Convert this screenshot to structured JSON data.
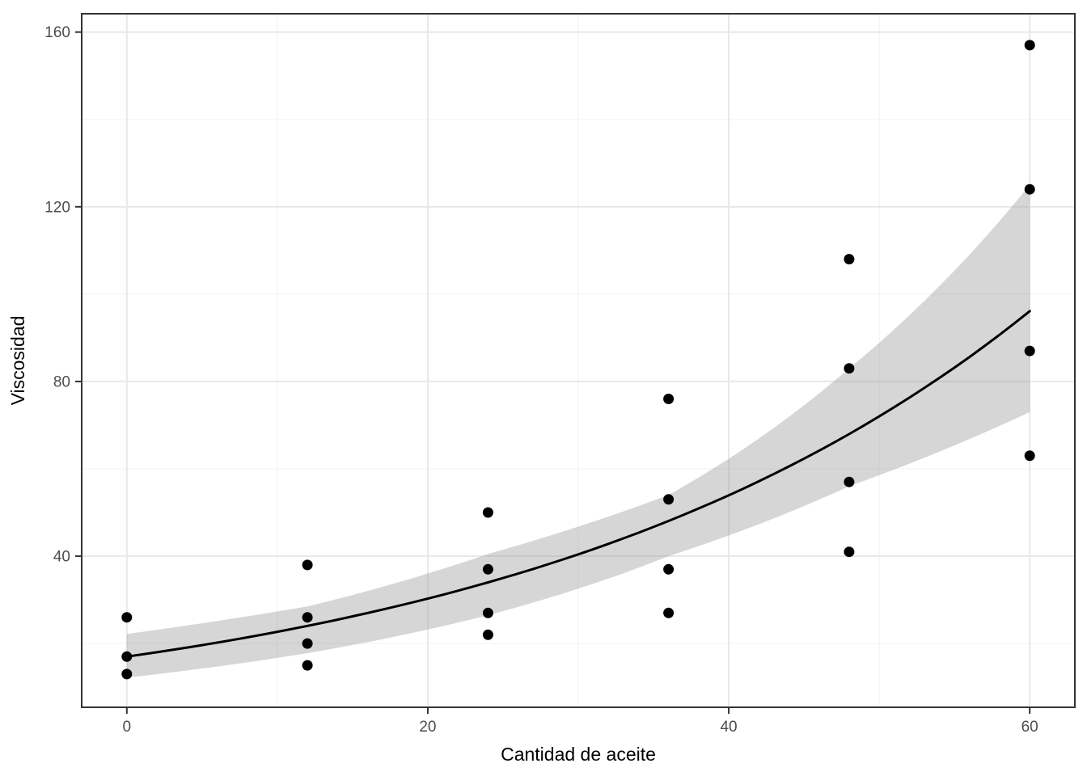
{
  "chart_data": {
    "type": "scatter",
    "title": "",
    "xlabel": "Cantidad de aceite",
    "ylabel": "Viscosidad",
    "x_ticks": [
      0,
      20,
      40,
      60
    ],
    "x_minor_gridlines": [
      10,
      30,
      50
    ],
    "y_ticks": [
      40,
      80,
      120,
      160
    ],
    "y_minor_gridlines": [
      20,
      60,
      100,
      140
    ],
    "xlim": [
      -3,
      63
    ],
    "ylim": [
      5.4,
      164.2
    ],
    "grid": true,
    "legend": "none",
    "points": [
      {
        "x": 0,
        "y": 26
      },
      {
        "x": 0,
        "y": 17
      },
      {
        "x": 0,
        "y": 13
      },
      {
        "x": 12,
        "y": 38
      },
      {
        "x": 12,
        "y": 26
      },
      {
        "x": 12,
        "y": 20
      },
      {
        "x": 12,
        "y": 15
      },
      {
        "x": 24,
        "y": 50
      },
      {
        "x": 24,
        "y": 37
      },
      {
        "x": 24,
        "y": 27
      },
      {
        "x": 24,
        "y": 22
      },
      {
        "x": 36,
        "y": 76
      },
      {
        "x": 36,
        "y": 53
      },
      {
        "x": 36,
        "y": 37
      },
      {
        "x": 36,
        "y": 27
      },
      {
        "x": 48,
        "y": 108
      },
      {
        "x": 48,
        "y": 83
      },
      {
        "x": 48,
        "y": 57
      },
      {
        "x": 48,
        "y": 41
      },
      {
        "x": 60,
        "y": 157
      },
      {
        "x": 60,
        "y": 124
      },
      {
        "x": 60,
        "y": 87
      },
      {
        "x": 60,
        "y": 63
      }
    ],
    "smooth_line": {
      "model": "exponential",
      "equation": "y = 17 * exp(0.02887 * x)",
      "a": 17,
      "b": 0.02887,
      "x_from": 0,
      "x_to": 60
    },
    "confidence_band": {
      "x": [
        0,
        12,
        24,
        36,
        48,
        60
      ],
      "lower": [
        12.2,
        17.8,
        26.5,
        40,
        56,
        73
      ],
      "upper": [
        22.2,
        28.5,
        40.5,
        54,
        83,
        125
      ]
    },
    "colors": {
      "point": "#000000",
      "line": "#000000",
      "band": "rgba(153,153,153,0.4)",
      "grid_major": "#e8e8e8",
      "grid_minor": "#f4f4f4",
      "panel_border": "#333333",
      "tick_mark": "#333333",
      "tick_label": "#4d4d4d",
      "axis_title": "#000000",
      "background": "#ffffff"
    }
  }
}
